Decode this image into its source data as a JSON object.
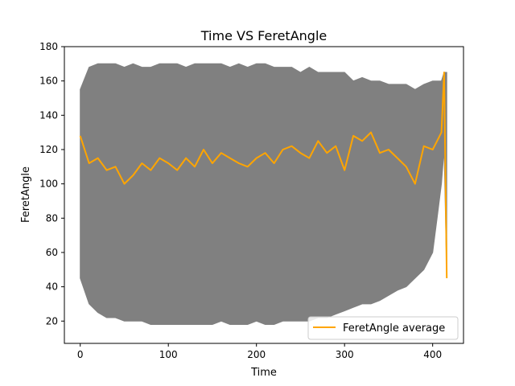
{
  "chart_data": {
    "type": "line",
    "title": "Time VS FeretAngle",
    "xlabel": "Time",
    "ylabel": "FeretAngle",
    "xlim": [
      -18,
      435
    ],
    "ylim": [
      7,
      180
    ],
    "xticks": [
      0,
      100,
      200,
      300,
      400
    ],
    "yticks": [
      20,
      40,
      60,
      80,
      100,
      120,
      140,
      160,
      180
    ],
    "grid": false,
    "legend_position": "lower-right",
    "series": [
      {
        "name": "FeretAngle average",
        "color": "#ffa500",
        "x": [
          0,
          10,
          20,
          30,
          40,
          50,
          60,
          70,
          80,
          90,
          100,
          110,
          120,
          130,
          140,
          150,
          160,
          170,
          180,
          190,
          200,
          210,
          220,
          230,
          240,
          250,
          260,
          270,
          280,
          290,
          300,
          310,
          320,
          330,
          340,
          350,
          360,
          370,
          380,
          390,
          400,
          405,
          410,
          413,
          416
        ],
        "y": [
          128,
          112,
          115,
          108,
          110,
          100,
          105,
          112,
          108,
          115,
          112,
          108,
          115,
          110,
          120,
          112,
          118,
          115,
          112,
          110,
          115,
          118,
          112,
          120,
          122,
          118,
          115,
          125,
          118,
          122,
          108,
          128,
          125,
          130,
          118,
          120,
          115,
          110,
          100,
          122,
          120,
          125,
          130,
          165,
          45
        ]
      },
      {
        "name": "",
        "color": "#808080",
        "type": "area",
        "x": [
          0,
          10,
          20,
          30,
          40,
          50,
          60,
          70,
          80,
          90,
          100,
          110,
          120,
          130,
          140,
          150,
          160,
          170,
          180,
          190,
          200,
          210,
          220,
          230,
          240,
          250,
          260,
          270,
          280,
          290,
          300,
          310,
          320,
          330,
          340,
          350,
          360,
          370,
          380,
          390,
          400,
          405,
          410,
          413,
          416
        ],
        "y_upper": [
          155,
          168,
          170,
          170,
          170,
          168,
          170,
          168,
          168,
          170,
          170,
          170,
          168,
          170,
          170,
          170,
          170,
          168,
          170,
          168,
          170,
          170,
          168,
          168,
          168,
          165,
          168,
          165,
          165,
          165,
          165,
          160,
          162,
          160,
          160,
          158,
          158,
          158,
          155,
          158,
          160,
          160,
          160,
          165,
          165
        ],
        "y_lower": [
          45,
          30,
          25,
          22,
          22,
          20,
          20,
          20,
          18,
          18,
          18,
          18,
          18,
          18,
          18,
          18,
          20,
          18,
          18,
          18,
          20,
          18,
          18,
          20,
          20,
          20,
          20,
          22,
          22,
          24,
          26,
          28,
          30,
          30,
          32,
          35,
          38,
          40,
          45,
          50,
          60,
          80,
          100,
          120,
          45
        ]
      }
    ]
  }
}
